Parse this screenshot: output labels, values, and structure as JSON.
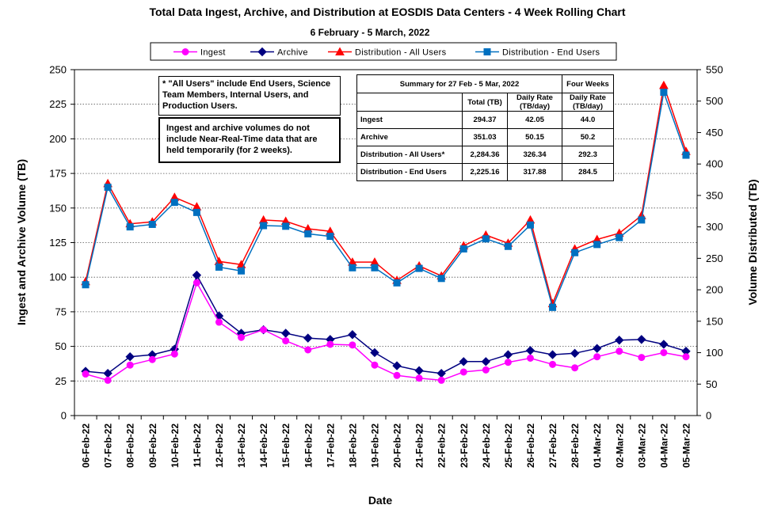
{
  "chart_data": {
    "type": "line",
    "title": "Total Data Ingest, Archive, and  Distribution at EOSDIS Data Centers - 4 Week Rolling Chart",
    "subtitle": "6  February   -  5  March,  2022",
    "xlabel": "Date",
    "ylabel_left": "Ingest and Archive Volume (TB)",
    "ylabel_right": "Volume Distributed (TB)",
    "ylim_left": [
      0,
      250
    ],
    "yticks_left": [
      "0",
      "25",
      "50",
      "75",
      "100",
      "125",
      "150",
      "175",
      "200",
      "225",
      "250"
    ],
    "ylim_right": [
      0,
      550
    ],
    "yticks_right": [
      "0",
      "50",
      "100",
      "150",
      "200",
      "250",
      "300",
      "350",
      "400",
      "450",
      "500",
      "550"
    ],
    "grid": true,
    "legend_position": "top",
    "categories": [
      "06-Feb-22",
      "07-Feb-22",
      "08-Feb-22",
      "09-Feb-22",
      "10-Feb-22",
      "11-Feb-22",
      "12-Feb-22",
      "13-Feb-22",
      "14-Feb-22",
      "15-Feb-22",
      "16-Feb-22",
      "17-Feb-22",
      "18-Feb-22",
      "19-Feb-22",
      "20-Feb-22",
      "21-Feb-22",
      "22-Feb-22",
      "23-Feb-22",
      "24-Feb-22",
      "25-Feb-22",
      "26-Feb-22",
      "27-Feb-22",
      "28-Feb-22",
      "01-Mar-22",
      "02-Mar-22",
      "03-Mar-22",
      "04-Mar-22",
      "05-Mar-22"
    ],
    "series": [
      {
        "name": "Ingest",
        "axis": "left",
        "color": "#ff00ff",
        "marker": "circle",
        "values": [
          30,
          25.5,
          36.5,
          40.5,
          44.5,
          96,
          67.5,
          56.5,
          62,
          54,
          47.5,
          51.5,
          51,
          36.5,
          29,
          27,
          25.5,
          31.5,
          33,
          38.5,
          41.5,
          37,
          34.5,
          42.5,
          46.5,
          42,
          45.5,
          42.5
        ]
      },
      {
        "name": "Archive",
        "axis": "left",
        "color": "#000080",
        "marker": "diamond",
        "values": [
          32,
          30.5,
          42.5,
          44,
          48,
          101.5,
          72,
          59.5,
          62,
          59.5,
          56,
          55,
          58.5,
          45.5,
          36,
          32.5,
          30.5,
          39,
          39,
          44,
          47,
          44,
          45,
          48.5,
          54.5,
          55,
          51.5,
          46.5
        ]
      },
      {
        "name": "Distribution - All Users",
        "axis": "right",
        "color": "#ff0000",
        "marker": "triangle",
        "values": [
          213,
          369,
          305,
          308,
          347,
          332,
          245,
          240,
          311,
          309,
          297,
          293,
          244,
          244,
          215,
          238,
          222,
          270,
          287,
          274,
          311,
          178,
          265,
          280,
          290,
          318,
          525,
          420
        ]
      },
      {
        "name": "Distribution - End Users",
        "axis": "right",
        "color": "#0070c0",
        "marker": "square",
        "values": [
          208,
          363,
          300,
          304,
          339,
          323,
          236,
          230,
          302,
          301,
          289,
          285,
          235,
          235,
          211,
          234,
          218,
          265,
          281,
          269,
          303,
          172,
          259,
          272,
          283,
          311,
          514,
          414
        ]
      }
    ]
  },
  "notes": {
    "all_users": "* \"All Users\" include End Users, Science Team Members,  Internal Users, and Production Users.",
    "near_real_time": "Ingest and archive volumes do not include Near-Real-Time data that are held temporarily (for 2 weeks)."
  },
  "summary_table": {
    "header": "Summary  for  27  Feb  -  5  Mar,  2022",
    "four_weeks_header": "Four Weeks",
    "col_total": "Total (TB)",
    "col_daily_rate": "Daily Rate (TB/day)",
    "col_four_week_rate": "Daily Rate (TB/day)",
    "rows": [
      {
        "label": "Ingest",
        "total": "294.37",
        "daily": "42.05",
        "four_weeks": "44.0"
      },
      {
        "label": "Archive",
        "total": "351.03",
        "daily": "50.15",
        "four_weeks": "50.2"
      },
      {
        "label": "Distribution - All Users*",
        "total": "2,284.36",
        "daily": "326.34",
        "four_weeks": "292.3"
      },
      {
        "label": "Distribution - End Users",
        "total": "2,225.16",
        "daily": "317.88",
        "four_weeks": "284.5"
      }
    ]
  }
}
